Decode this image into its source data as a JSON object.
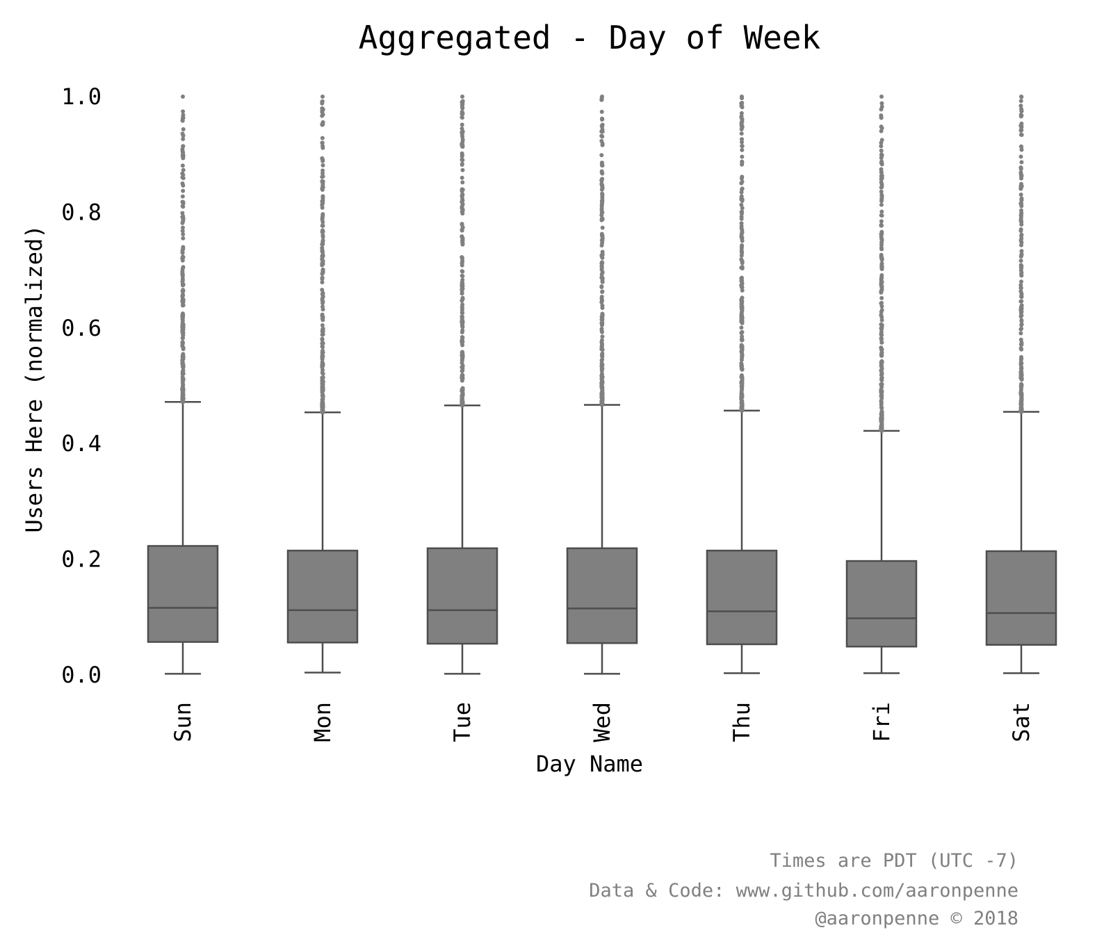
{
  "chart_data": {
    "type": "box",
    "title": "Aggregated - Day of Week",
    "xlabel": "Day Name",
    "ylabel": "Users Here (normalized)",
    "ylim": [
      0.0,
      1.0
    ],
    "yticks": [
      "0.0",
      "0.2",
      "0.4",
      "0.6",
      "0.8",
      "1.0"
    ],
    "ytick_values": [
      0.0,
      0.2,
      0.4,
      0.6,
      0.8,
      1.0
    ],
    "grid": false,
    "color": "#808080",
    "edge_color": "#4d4d4d",
    "categories": [
      "Sun",
      "Mon",
      "Tue",
      "Wed",
      "Thu",
      "Fri",
      "Sat"
    ],
    "boxes": [
      {
        "whisker_low": 0.002,
        "q1": 0.057,
        "median": 0.116,
        "q3": 0.223,
        "whisker_high": 0.472,
        "outliers_max": 1.0
      },
      {
        "whisker_low": 0.004,
        "q1": 0.056,
        "median": 0.112,
        "q3": 0.215,
        "whisker_high": 0.454,
        "outliers_max": 1.0
      },
      {
        "whisker_low": 0.002,
        "q1": 0.054,
        "median": 0.112,
        "q3": 0.219,
        "whisker_high": 0.466,
        "outliers_max": 1.0
      },
      {
        "whisker_low": 0.002,
        "q1": 0.055,
        "median": 0.115,
        "q3": 0.219,
        "whisker_high": 0.467,
        "outliers_max": 1.0
      },
      {
        "whisker_low": 0.003,
        "q1": 0.053,
        "median": 0.11,
        "q3": 0.215,
        "whisker_high": 0.457,
        "outliers_max": 1.0
      },
      {
        "whisker_low": 0.003,
        "q1": 0.049,
        "median": 0.098,
        "q3": 0.197,
        "whisker_high": 0.422,
        "outliers_max": 1.0
      },
      {
        "whisker_low": 0.003,
        "q1": 0.052,
        "median": 0.107,
        "q3": 0.214,
        "whisker_high": 0.455,
        "outliers_max": 1.0
      }
    ]
  },
  "footer": {
    "line1": "Times are PDT (UTC -7)",
    "line2": "Data & Code: www.github.com/aaronpenne",
    "line3": "@aaronpenne © 2018"
  }
}
